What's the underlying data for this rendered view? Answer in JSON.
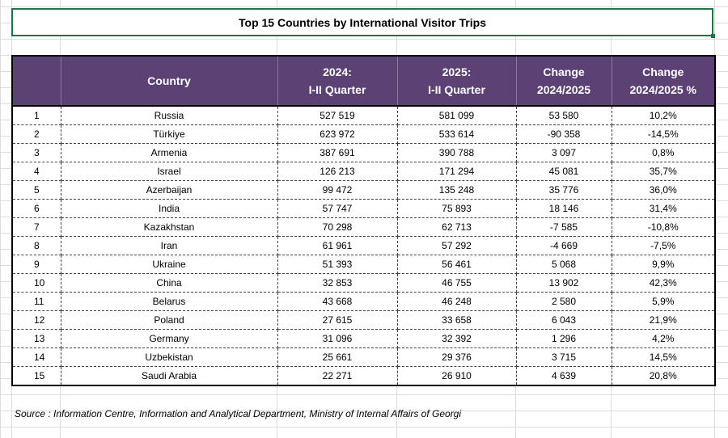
{
  "title": "Top 15 Countries by International Visitor Trips",
  "headers": {
    "number": "",
    "country": "Country",
    "q2024": [
      "2024:",
      "I-II Quarter"
    ],
    "q2025": [
      "2025:",
      "I-II Quarter"
    ],
    "change": [
      "Change",
      "2024/2025"
    ],
    "change_pct": [
      "Change",
      "2024/2025 %"
    ]
  },
  "rows": [
    {
      "n": "1",
      "country": "Russia",
      "v2024": "527 519",
      "v2025": "581 099",
      "change": "53 580",
      "pct": "10,2%"
    },
    {
      "n": "2",
      "country": "Türkiye",
      "v2024": "623 972",
      "v2025": "533 614",
      "change": "-90 358",
      "pct": "-14,5%"
    },
    {
      "n": "3",
      "country": "Armenia",
      "v2024": "387 691",
      "v2025": "390 788",
      "change": "3 097",
      "pct": "0,8%"
    },
    {
      "n": "4",
      "country": "Israel",
      "v2024": "126 213",
      "v2025": "171 294",
      "change": "45 081",
      "pct": "35,7%"
    },
    {
      "n": "5",
      "country": "Azerbaijan",
      "v2024": "99 472",
      "v2025": "135 248",
      "change": "35 776",
      "pct": "36,0%"
    },
    {
      "n": "6",
      "country": "India",
      "v2024": "57 747",
      "v2025": "75 893",
      "change": "18 146",
      "pct": "31,4%"
    },
    {
      "n": "7",
      "country": "Kazakhstan",
      "v2024": "70 298",
      "v2025": "62 713",
      "change": "-7 585",
      "pct": "-10,8%"
    },
    {
      "n": "8",
      "country": "Iran",
      "v2024": "61 961",
      "v2025": "57 292",
      "change": "-4 669",
      "pct": "-7,5%"
    },
    {
      "n": "9",
      "country": "Ukraine",
      "v2024": "51 393",
      "v2025": "56 461",
      "change": "5 068",
      "pct": "9,9%"
    },
    {
      "n": "10",
      "country": "China",
      "v2024": "32 853",
      "v2025": "46 755",
      "change": "13 902",
      "pct": "42,3%"
    },
    {
      "n": "11",
      "country": "Belarus",
      "v2024": "43 668",
      "v2025": "46 248",
      "change": "2 580",
      "pct": "5,9%"
    },
    {
      "n": "12",
      "country": "Poland",
      "v2024": "27 615",
      "v2025": "33 658",
      "change": "6 043",
      "pct": "21,9%"
    },
    {
      "n": "13",
      "country": "Germany",
      "v2024": "31 096",
      "v2025": "32 392",
      "change": "1 296",
      "pct": "4,2%"
    },
    {
      "n": "14",
      "country": "Uzbekistan",
      "v2024": "25 661",
      "v2025": "29 376",
      "change": "3 715",
      "pct": "14,5%"
    },
    {
      "n": "15",
      "country": "Saudi Arabia",
      "v2024": "22 271",
      "v2025": "26 910",
      "change": "4 639",
      "pct": "20,8%"
    }
  ],
  "source": "Source : Information Centre, Information and Analytical Department, Ministry of Internal Affairs of Georgi",
  "colors": {
    "header_bg": "#5b4174",
    "header_text": "#ffffff",
    "selection_border": "#217346",
    "gridline": "#dcdcdc"
  }
}
